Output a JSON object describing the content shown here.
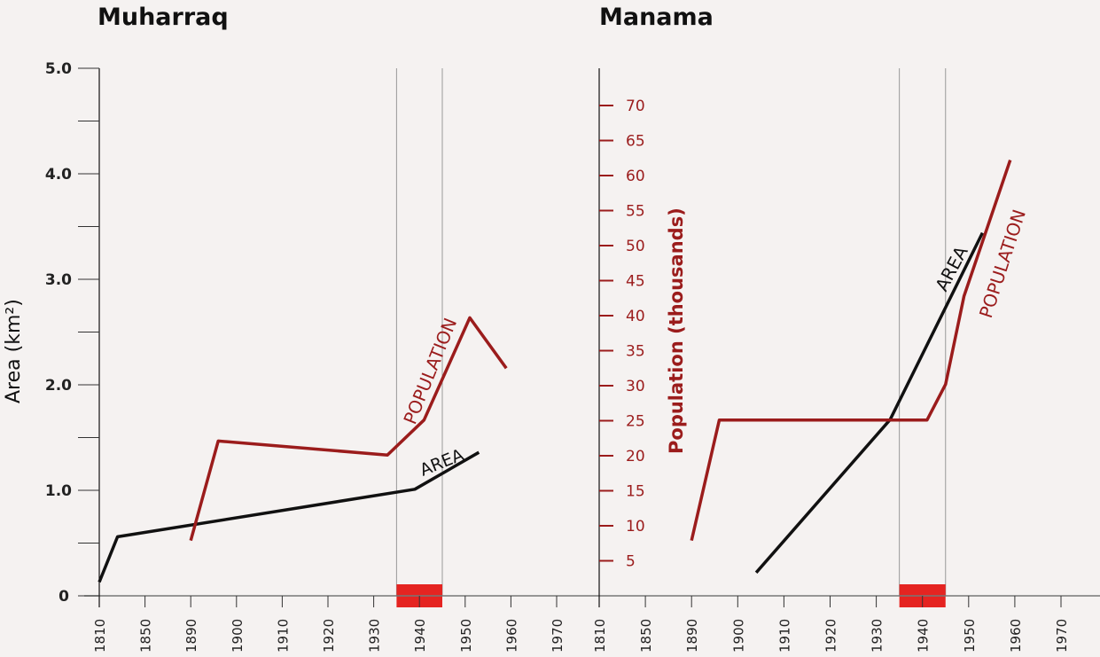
{
  "chart_data": [
    {
      "type": "line",
      "title": "Muharraq",
      "x_ticks": [
        1810,
        1850,
        1890,
        1900,
        1910,
        1920,
        1930,
        1940,
        1950,
        1960,
        1970
      ],
      "highlight_range": [
        1935,
        1945
      ],
      "ylabel_left": "Area (km²)",
      "yticks_left": [
        "0",
        "1.0",
        "2.0",
        "3.0",
        "4.0",
        "5.0"
      ],
      "ylim_left": [
        0,
        5
      ],
      "series": [
        {
          "name": "AREA",
          "axis": "left",
          "color": "#111111",
          "points": [
            [
              1810,
              0.13
            ],
            [
              1826,
              0.56
            ],
            [
              1939,
              1.01
            ],
            [
              1953,
              1.36
            ]
          ]
        },
        {
          "name": "POPULATION",
          "axis": "right",
          "color": "#9b1c1c",
          "points": [
            [
              1890,
              7.9
            ],
            [
              1896,
              22.1
            ],
            [
              1933,
              20.1
            ],
            [
              1941,
              25.1
            ],
            [
              1951,
              39.7
            ],
            [
              1959,
              32.5
            ]
          ]
        }
      ]
    },
    {
      "type": "line",
      "title": "Manama",
      "x_ticks": [
        1810,
        1850,
        1890,
        1900,
        1910,
        1920,
        1930,
        1940,
        1950,
        1960,
        1970
      ],
      "highlight_range": [
        1935,
        1945
      ],
      "ylabel_right": "Population (thousands)",
      "yticks_right": [
        "5",
        "10",
        "15",
        "20",
        "25",
        "30",
        "35",
        "40",
        "45",
        "50",
        "55",
        "60",
        "65",
        "70"
      ],
      "ylim_right": [
        0,
        75
      ],
      "series": [
        {
          "name": "AREA",
          "axis": "left",
          "color": "#111111",
          "points": [
            [
              1904,
              0.22
            ],
            [
              1933,
              1.67
            ],
            [
              1953,
              3.44
            ]
          ]
        },
        {
          "name": "POPULATION",
          "axis": "right",
          "color": "#9b1c1c",
          "points": [
            [
              1890,
              7.9
            ],
            [
              1896,
              25.1
            ],
            [
              1941,
              25.1
            ],
            [
              1945,
              30.2
            ],
            [
              1949,
              42.8
            ],
            [
              1959,
              62.2
            ]
          ]
        }
      ]
    }
  ]
}
